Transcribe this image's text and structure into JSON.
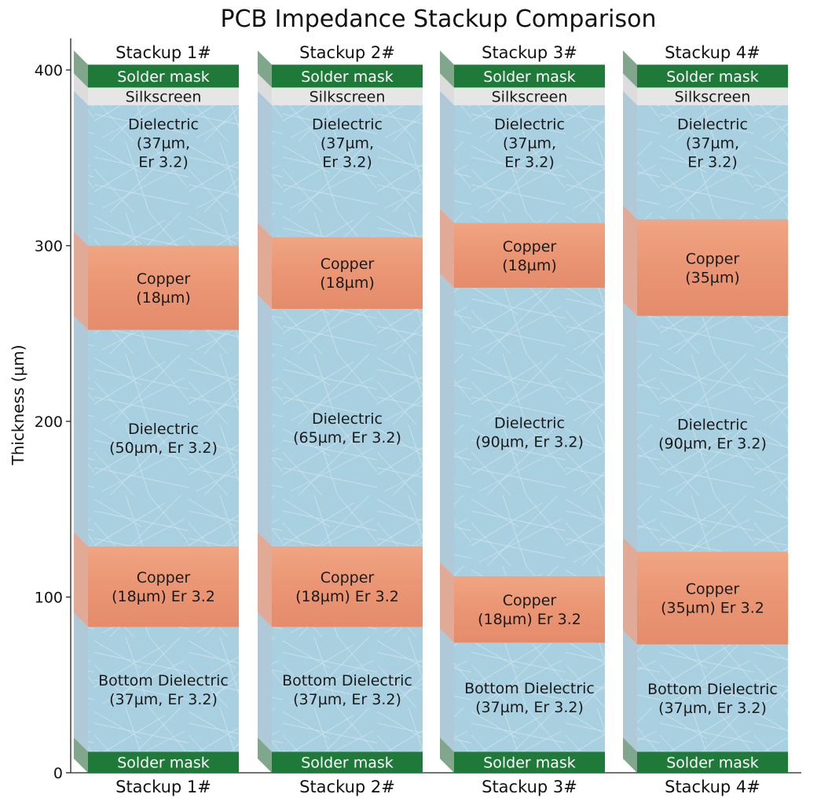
{
  "chart_data": {
    "type": "stacked-bar",
    "title": "PCB Impedance Stackup Comparison",
    "ylabel": "Thickness (µm)",
    "ylim": [
      0,
      420
    ],
    "yticks": [
      0,
      100,
      200,
      300,
      400
    ],
    "colors": {
      "solder_mask": "#1f7a3a",
      "silkscreen": "#e6e6e6",
      "dielectric": "#a9d0e0",
      "copper": "#ec9a78",
      "side_dielectric": "#6f9db8",
      "side_copper": "#c9643f"
    },
    "stackups": [
      {
        "name": "Stackup 1#",
        "layers": [
          {
            "type": "solder_mask",
            "label": "Solder mask",
            "from": 0,
            "to": 12
          },
          {
            "type": "dielectric",
            "label": "Bottom Dielectric\n(37µm, Er 3.2)",
            "from": 12,
            "to": 83
          },
          {
            "type": "copper",
            "label": "Copper\n(18µm) Er 3.2",
            "from": 83,
            "to": 129
          },
          {
            "type": "dielectric",
            "label": "Dielectric\n(50µm, Er 3.2)",
            "from": 129,
            "to": 252
          },
          {
            "type": "copper",
            "label": "Copper\n(18µm)",
            "from": 252,
            "to": 300
          },
          {
            "type": "dielectric",
            "label": "Dielectric\n(37µm,\nEr 3.2)",
            "from": 300,
            "to": 380
          },
          {
            "type": "silkscreen",
            "label": "Silkscreen",
            "from": 380,
            "to": 390
          },
          {
            "type": "solder_mask",
            "label": "Solder mask",
            "from": 390,
            "to": 403
          }
        ]
      },
      {
        "name": "Stackup 2#",
        "layers": [
          {
            "type": "solder_mask",
            "label": "Solder mask",
            "from": 0,
            "to": 12
          },
          {
            "type": "dielectric",
            "label": "Bottom Dielectric\n(37µm, Er 3.2)",
            "from": 12,
            "to": 83
          },
          {
            "type": "copper",
            "label": "Copper\n(18µm) Er 3.2",
            "from": 83,
            "to": 129
          },
          {
            "type": "dielectric",
            "label": "Dielectric\n(65µm, Er 3.2)",
            "from": 129,
            "to": 264
          },
          {
            "type": "copper",
            "label": "Copper\n(18µm)",
            "from": 264,
            "to": 305
          },
          {
            "type": "dielectric",
            "label": "Dielectric\n(37µm,\nEr 3.2)",
            "from": 305,
            "to": 380
          },
          {
            "type": "silkscreen",
            "label": "Silkscreen",
            "from": 380,
            "to": 390
          },
          {
            "type": "solder_mask",
            "label": "Solder mask",
            "from": 390,
            "to": 403
          }
        ]
      },
      {
        "name": "Stackup 3#",
        "layers": [
          {
            "type": "solder_mask",
            "label": "Solder mask",
            "from": 0,
            "to": 12
          },
          {
            "type": "dielectric",
            "label": "Bottom Dielectric\n(37µm, Er 3.2)",
            "from": 12,
            "to": 74
          },
          {
            "type": "copper",
            "label": "Copper\n(18µm) Er 3.2",
            "from": 74,
            "to": 112
          },
          {
            "type": "dielectric",
            "label": "Dielectric\n(90µm, Er 3.2)",
            "from": 112,
            "to": 276
          },
          {
            "type": "copper",
            "label": "Copper\n(18µm)",
            "from": 276,
            "to": 313
          },
          {
            "type": "dielectric",
            "label": "Dielectric\n(37µm,\nEr 3.2)",
            "from": 313,
            "to": 380
          },
          {
            "type": "silkscreen",
            "label": "Silkscreen",
            "from": 380,
            "to": 390
          },
          {
            "type": "solder_mask",
            "label": "Solder mask",
            "from": 390,
            "to": 403
          }
        ]
      },
      {
        "name": "Stackup 4#",
        "layers": [
          {
            "type": "solder_mask",
            "label": "Solder mask",
            "from": 0,
            "to": 12
          },
          {
            "type": "dielectric",
            "label": "Bottom Dielectric\n(37µm, Er 3.2)",
            "from": 12,
            "to": 73
          },
          {
            "type": "copper",
            "label": "Copper\n(35µm) Er 3.2",
            "from": 73,
            "to": 126
          },
          {
            "type": "dielectric",
            "label": "Dielectric\n(90µm, Er 3.2)",
            "from": 126,
            "to": 260
          },
          {
            "type": "copper",
            "label": "Copper\n(35µm)",
            "from": 260,
            "to": 315
          },
          {
            "type": "dielectric",
            "label": "Dielectric\n(37µm,\nEr 3.2)",
            "from": 315,
            "to": 380
          },
          {
            "type": "silkscreen",
            "label": "Silkscreen",
            "from": 380,
            "to": 390
          },
          {
            "type": "solder_mask",
            "label": "Solder mask",
            "from": 390,
            "to": 403
          }
        ]
      }
    ]
  }
}
